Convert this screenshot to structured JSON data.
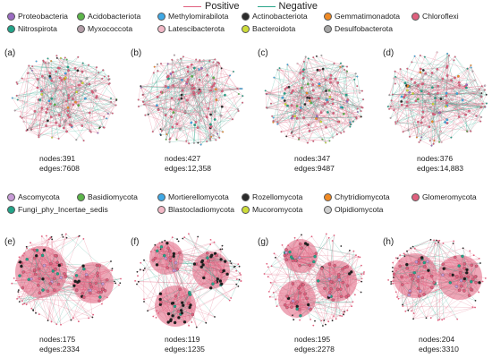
{
  "edge_legend": {
    "positive_label": "Positive",
    "negative_label": "Negative",
    "positive_color": "#e0607e",
    "negative_color": "#2aa58a"
  },
  "bacteria_legend": {
    "row1": [
      {
        "label": "Proteobacteria",
        "color": "#9b6cc2"
      },
      {
        "label": "Acidobacteriota",
        "color": "#5cb54a"
      },
      {
        "label": "Methylomirabilota",
        "color": "#3fa9e6"
      },
      {
        "label": "Actinobacteriota",
        "color": "#2b2b2b"
      },
      {
        "label": "Gemmatimonadota",
        "color": "#f08a24"
      },
      {
        "label": "Chloroflexi",
        "color": "#e0607e"
      }
    ],
    "row2": [
      {
        "label": "Nitrospirota",
        "color": "#23a489"
      },
      {
        "label": "Myxococcota",
        "color": "#b49ea8"
      },
      {
        "label": "Latescibacterota",
        "color": "#f2b8c6"
      },
      {
        "label": "Bacteroidota",
        "color": "#cddc39"
      },
      {
        "label": "Desulfobacterota",
        "color": "#a6a6a6"
      }
    ]
  },
  "fungi_legend": {
    "row1": [
      {
        "label": "Ascomycota",
        "color": "#c79bd6"
      },
      {
        "label": "Basidiomycota",
        "color": "#5cb54a"
      },
      {
        "label": "Mortierellomycota",
        "color": "#3fa9e6"
      },
      {
        "label": "Rozellomycota",
        "color": "#2b2b2b"
      },
      {
        "label": "Chytridiomycota",
        "color": "#f08a24"
      },
      {
        "label": "Glomeromycota",
        "color": "#e0607e"
      }
    ],
    "row2": [
      {
        "label": "Fungi_phy_Incertae_sedis",
        "color": "#23a489"
      },
      {
        "label": "Blastocladiomycota",
        "color": "#f2b8c6"
      },
      {
        "label": "Mucoromycota",
        "color": "#cddc39"
      },
      {
        "label": "Olpidiomycota",
        "color": "#cfcfcf"
      }
    ]
  },
  "panels": [
    {
      "id": "a",
      "label": "(a)",
      "nodes": "nodes:391",
      "edges": "edges:7608",
      "style": "bacteria"
    },
    {
      "id": "b",
      "label": "(b)",
      "nodes": "nodes:427",
      "edges": "edges:12,358",
      "style": "bacteria"
    },
    {
      "id": "c",
      "label": "(c)",
      "nodes": "nodes:347",
      "edges": "edges:9487",
      "style": "bacteria"
    },
    {
      "id": "d",
      "label": "(d)",
      "nodes": "nodes:376",
      "edges": "edges:14,883",
      "style": "bacteria"
    },
    {
      "id": "e",
      "label": "(e)",
      "nodes": "nodes:175",
      "edges": "edges:2334",
      "style": "fungi"
    },
    {
      "id": "f",
      "label": "(f)",
      "nodes": "nodes:119",
      "edges": "edges:1235",
      "style": "fungi"
    },
    {
      "id": "g",
      "label": "(g)",
      "nodes": "nodes:195",
      "edges": "edges:2278",
      "style": "fungi"
    },
    {
      "id": "h",
      "label": "(h)",
      "nodes": "nodes:204",
      "edges": "edges:3310",
      "style": "fungi"
    }
  ]
}
